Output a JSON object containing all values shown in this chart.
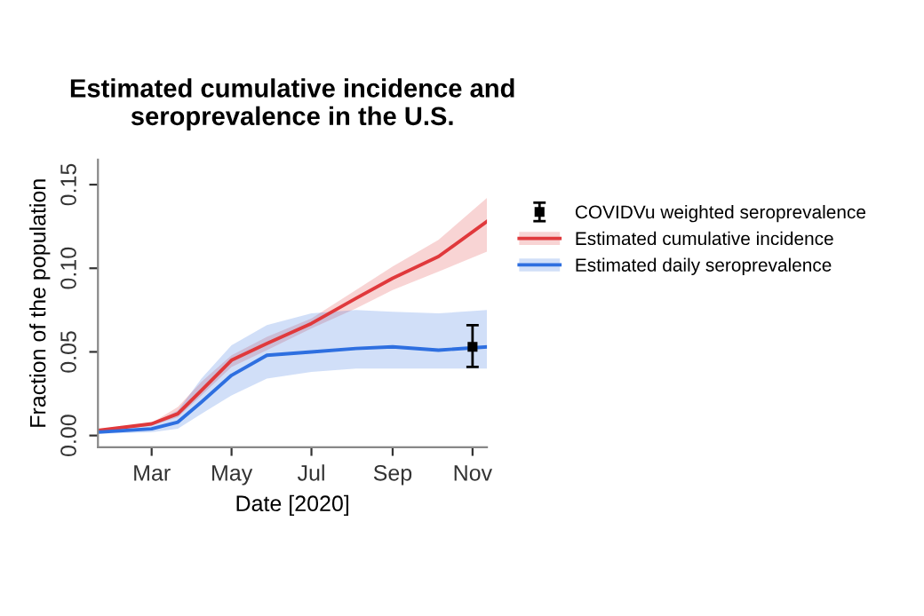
{
  "chart_data": {
    "type": "line",
    "title": "Estimated cumulative incidence and\nseroprevalence in the U.S.",
    "xlabel": "Date [2020]",
    "ylabel": "Fraction of the population",
    "xlim": [
      "2020-01-20",
      "2020-11-12"
    ],
    "xticks": [
      {
        "value": "2020-03-01",
        "label": "Mar"
      },
      {
        "value": "2020-05-01",
        "label": "May"
      },
      {
        "value": "2020-07-01",
        "label": "Jul"
      },
      {
        "value": "2020-09-01",
        "label": "Sep"
      },
      {
        "value": "2020-11-01",
        "label": "Nov"
      }
    ],
    "ylim": [
      -0.007,
      0.165
    ],
    "yticks": [
      {
        "value": 0,
        "label": "0.00"
      },
      {
        "value": 0.05,
        "label": "0.05"
      },
      {
        "value": 0.1,
        "label": "0.10"
      },
      {
        "value": 0.15,
        "label": "0.15"
      }
    ],
    "grid": false,
    "legend": "right",
    "series": [
      {
        "name": "COVIDVu weighted seroprevalence",
        "type": "scatter",
        "color": "#000000",
        "marker": "square",
        "x": [
          "2020-11-01"
        ],
        "values": [
          0.053
        ],
        "errors": [
          [
            0.041,
            0.066
          ]
        ]
      },
      {
        "name": "Estimated cumulative incidence",
        "color": "#e0393c",
        "x": [
          "2020-01-20",
          "2020-03-01",
          "2020-03-21",
          "2020-04-08",
          "2020-05-01",
          "2020-05-28",
          "2020-07-01",
          "2020-08-04",
          "2020-09-01",
          "2020-10-06",
          "2020-11-12"
        ],
        "values": [
          0.003,
          0.007,
          0.013,
          0.027,
          0.045,
          0.055,
          0.067,
          0.082,
          0.094,
          0.107,
          0.128
        ],
        "lower": [
          0.002,
          0.006,
          0.011,
          0.024,
          0.041,
          0.051,
          0.064,
          0.076,
          0.087,
          0.098,
          0.11
        ],
        "upper": [
          0.003,
          0.0075,
          0.017,
          0.032,
          0.048,
          0.059,
          0.07,
          0.087,
          0.101,
          0.117,
          0.142
        ]
      },
      {
        "name": "Estimated daily seroprevalence",
        "color": "#2e6fe0",
        "x": [
          "2020-01-20",
          "2020-03-01",
          "2020-03-21",
          "2020-04-08",
          "2020-05-01",
          "2020-05-28",
          "2020-07-01",
          "2020-08-04",
          "2020-09-01",
          "2020-10-06",
          "2020-11-12"
        ],
        "values": [
          0.002,
          0.004,
          0.008,
          0.02,
          0.036,
          0.048,
          0.05,
          0.052,
          0.053,
          0.051,
          0.053
        ],
        "lower": [
          0.001,
          0.002,
          0.004,
          0.013,
          0.024,
          0.034,
          0.038,
          0.04,
          0.04,
          0.04,
          0.04
        ],
        "upper": [
          0.003,
          0.007,
          0.015,
          0.034,
          0.054,
          0.066,
          0.073,
          0.075,
          0.074,
          0.073,
          0.075
        ]
      }
    ]
  }
}
